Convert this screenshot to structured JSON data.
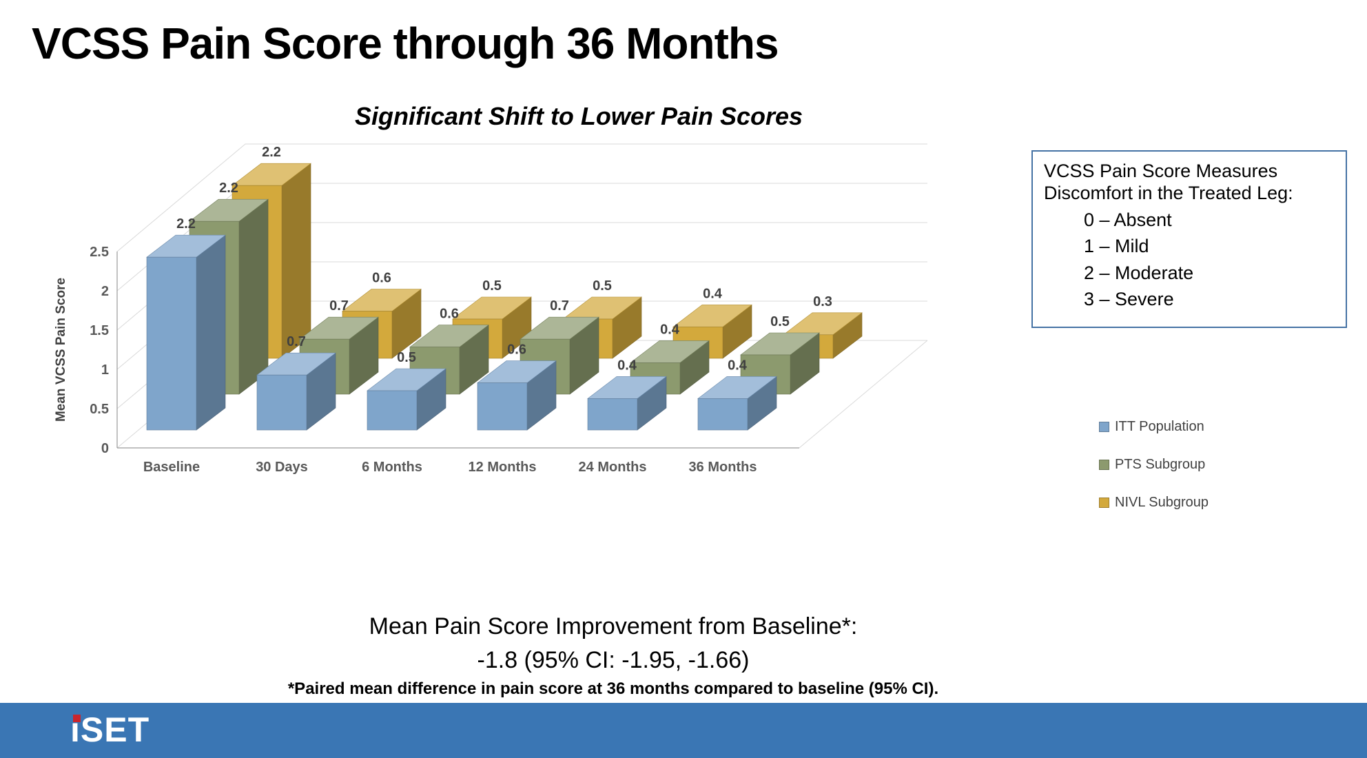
{
  "slide": {
    "title": "VCSS Pain Score through 36 Months"
  },
  "chart_data": {
    "type": "bar",
    "style": "3d-column",
    "title": "Significant Shift to Lower Pain Scores",
    "xlabel": "",
    "ylabel": "Mean VCSS Pain Score",
    "ylim": [
      0,
      2.5
    ],
    "ytick_step": 0.5,
    "yticks": [
      "0",
      "0.5",
      "1",
      "1.5",
      "2",
      "2.5"
    ],
    "categories": [
      "Baseline",
      "30 Days",
      "6 Months",
      "12 Months",
      "24 Months",
      "36 Months"
    ],
    "series": [
      {
        "name": "ITT Population",
        "color": "#7FA5CB",
        "values": [
          2.2,
          0.7,
          0.5,
          0.6,
          0.4,
          0.4
        ]
      },
      {
        "name": "PTS Subgroup",
        "color": "#8C9A6E",
        "values": [
          2.2,
          0.7,
          0.6,
          0.7,
          0.4,
          0.5
        ]
      },
      {
        "name": "NIVL Subgroup",
        "color": "#D3A93C",
        "values": [
          2.2,
          0.6,
          0.5,
          0.5,
          0.4,
          0.3
        ]
      }
    ],
    "grid": true,
    "legend_position": "right"
  },
  "info_box": {
    "line1": "VCSS Pain Score Measures",
    "line2": "Discomfort in the Treated Leg:",
    "items": [
      "0 – Absent",
      "1 – Mild",
      "2 – Moderate",
      "3 – Severe"
    ]
  },
  "summary": {
    "line1": "Mean Pain Score Improvement from Baseline*:",
    "line2": "-1.8 (95% CI: -1.95, -1.66)",
    "footnote": "*Paired mean difference in pain score at 36 months compared to baseline (95% CI)."
  },
  "footer": {
    "logo_text": "iSET"
  },
  "colors": {
    "footer_bar": "#3A76B4",
    "info_border": "#4472A4",
    "grid": "#D9D9D9",
    "axis_line": "#9A9A9A",
    "axis_text": "#595959",
    "bar_label": "#404040",
    "logo_red": "#C9252D"
  }
}
